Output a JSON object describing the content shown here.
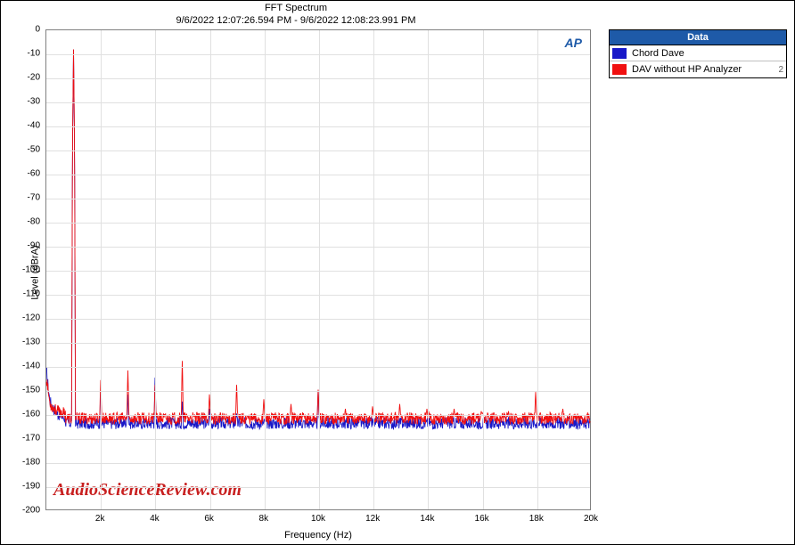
{
  "chart": {
    "type": "line",
    "title": "FFT Spectrum",
    "subtitle": "9/6/2022 12:07:26.594 PM - 9/6/2022 12:08:23.991 PM",
    "xlabel": "Frequency (Hz)",
    "ylabel": "Level (dBrA)",
    "ylim": [
      -200,
      0
    ],
    "xlim": [
      0,
      20000
    ],
    "ytick_step": 10,
    "xticks": [
      2000,
      4000,
      6000,
      8000,
      10000,
      12000,
      14000,
      16000,
      18000,
      20000
    ],
    "xtick_labels": [
      "2k",
      "4k",
      "6k",
      "8k",
      "10k",
      "12k",
      "14k",
      "16k",
      "18k",
      "20k"
    ],
    "background_color": "#ffffff",
    "grid_color": "#e0e0e0",
    "border_color": "#808080",
    "watermark": "AudioScienceReview.com",
    "watermark_color": "#c82020",
    "ap_logo": "AP",
    "ap_logo_color": "#1e5aa8",
    "series": {
      "blue": {
        "label": "Chord Dave",
        "color": "#1818c8",
        "noise_floor": -164,
        "noise_jitter": 2.5,
        "fundamental": {
          "freq": 1000,
          "level": -8
        },
        "low_freq_rise": [
          {
            "f": 20,
            "db": -143
          },
          {
            "f": 60,
            "db": -148
          },
          {
            "f": 120,
            "db": -154
          },
          {
            "f": 200,
            "db": -157
          },
          {
            "f": 400,
            "db": -160
          },
          {
            "f": 700,
            "db": -162
          }
        ],
        "harmonics": [
          {
            "f": 2000,
            "db": -150
          },
          {
            "f": 3000,
            "db": -152
          },
          {
            "f": 4000,
            "db": -145
          },
          {
            "f": 5000,
            "db": -155
          },
          {
            "f": 6000,
            "db": -158
          },
          {
            "f": 7000,
            "db": -160
          },
          {
            "f": 10000,
            "db": -150
          }
        ]
      },
      "red": {
        "label": "DAV without HP Analyzer",
        "index": 2,
        "color": "#f01010",
        "noise_floor": -162,
        "noise_jitter": 2.5,
        "fundamental": {
          "freq": 1000,
          "level": -8
        },
        "low_freq_rise": [
          {
            "f": 20,
            "db": -146
          },
          {
            "f": 60,
            "db": -150
          },
          {
            "f": 120,
            "db": -155
          },
          {
            "f": 200,
            "db": -157
          },
          {
            "f": 400,
            "db": -159
          },
          {
            "f": 700,
            "db": -160
          }
        ],
        "harmonics": [
          {
            "f": 2000,
            "db": -146
          },
          {
            "f": 3000,
            "db": -142
          },
          {
            "f": 4000,
            "db": -148
          },
          {
            "f": 5000,
            "db": -138
          },
          {
            "f": 6000,
            "db": -152
          },
          {
            "f": 7000,
            "db": -148
          },
          {
            "f": 8000,
            "db": -154
          },
          {
            "f": 9000,
            "db": -156
          },
          {
            "f": 10000,
            "db": -150
          },
          {
            "f": 11000,
            "db": -158
          },
          {
            "f": 12000,
            "db": -157
          },
          {
            "f": 13000,
            "db": -156
          },
          {
            "f": 14000,
            "db": -158
          },
          {
            "f": 15000,
            "db": -158
          },
          {
            "f": 16000,
            "db": -159
          },
          {
            "f": 17000,
            "db": -159
          },
          {
            "f": 18000,
            "db": -151
          },
          {
            "f": 19000,
            "db": -158
          }
        ]
      }
    }
  },
  "legend": {
    "header": "Data"
  }
}
